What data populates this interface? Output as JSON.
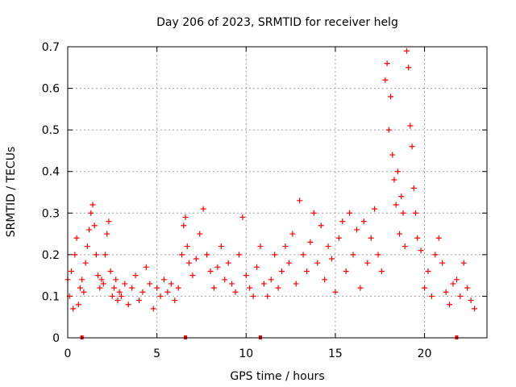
{
  "chart_data": {
    "type": "scatter",
    "title": "Day 206 of 2023, SRMTID for receiver helg",
    "xlabel": "GPS time / hours",
    "ylabel": "SRMTID / TECUs",
    "xlim": [
      0,
      23.5
    ],
    "ylim": [
      0,
      0.7
    ],
    "xticks": [
      0,
      5,
      10,
      15,
      20
    ],
    "xtick_labels": [
      "0",
      "5",
      "10",
      "15",
      "20"
    ],
    "yticks": [
      0,
      0.1,
      0.2,
      0.3,
      0.4,
      0.5,
      0.6,
      0.7
    ],
    "ytick_labels": [
      "0",
      "0.1",
      "0.2",
      "0.3",
      "0.4",
      "0.5",
      "0.6",
      "0.7"
    ],
    "grid": true,
    "marker": "+",
    "color": "#ff0000",
    "series": [
      {
        "name": "SRMTID",
        "x": [
          0.0,
          0.1,
          0.2,
          0.3,
          0.4,
          0.5,
          0.6,
          0.7,
          0.8,
          0.9,
          1.0,
          1.1,
          1.2,
          1.3,
          1.4,
          1.5,
          1.6,
          1.7,
          1.8,
          1.9,
          2.0,
          2.1,
          2.2,
          2.3,
          2.4,
          2.5,
          2.6,
          2.7,
          2.8,
          2.9,
          3.0,
          3.2,
          3.4,
          3.6,
          3.8,
          4.0,
          4.2,
          4.4,
          4.6,
          4.8,
          5.0,
          5.2,
          5.4,
          5.6,
          5.8,
          6.0,
          6.2,
          6.4,
          6.5,
          6.6,
          6.7,
          6.8,
          7.0,
          7.2,
          7.4,
          7.6,
          7.8,
          8.0,
          8.2,
          8.4,
          8.6,
          8.8,
          9.0,
          9.2,
          9.4,
          9.6,
          9.8,
          10.0,
          10.2,
          10.4,
          10.6,
          10.8,
          11.0,
          11.2,
          11.4,
          11.6,
          11.8,
          12.0,
          12.2,
          12.4,
          12.6,
          12.8,
          13.0,
          13.2,
          13.4,
          13.6,
          13.8,
          14.0,
          14.2,
          14.4,
          14.6,
          14.8,
          15.0,
          15.2,
          15.4,
          15.6,
          15.8,
          16.0,
          16.2,
          16.4,
          16.6,
          16.8,
          17.0,
          17.2,
          17.4,
          17.6,
          17.8,
          17.9,
          18.0,
          18.1,
          18.2,
          18.3,
          18.4,
          18.5,
          18.6,
          18.7,
          18.8,
          18.9,
          19.0,
          19.1,
          19.2,
          19.3,
          19.4,
          19.5,
          19.6,
          19.8,
          20.0,
          20.2,
          20.4,
          20.6,
          20.8,
          21.0,
          21.2,
          21.4,
          21.6,
          21.8,
          22.0,
          22.2,
          22.4,
          22.6,
          22.8
        ],
        "y": [
          0.14,
          0.1,
          0.16,
          0.07,
          0.2,
          0.24,
          0.08,
          0.12,
          0.14,
          0.11,
          0.18,
          0.22,
          0.26,
          0.3,
          0.32,
          0.27,
          0.2,
          0.15,
          0.12,
          0.14,
          0.13,
          0.2,
          0.25,
          0.28,
          0.16,
          0.1,
          0.12,
          0.14,
          0.09,
          0.11,
          0.1,
          0.13,
          0.08,
          0.12,
          0.15,
          0.09,
          0.11,
          0.17,
          0.13,
          0.07,
          0.12,
          0.1,
          0.14,
          0.11,
          0.13,
          0.09,
          0.12,
          0.2,
          0.27,
          0.29,
          0.22,
          0.18,
          0.15,
          0.19,
          0.25,
          0.31,
          0.2,
          0.16,
          0.12,
          0.17,
          0.22,
          0.14,
          0.18,
          0.13,
          0.11,
          0.2,
          0.29,
          0.15,
          0.12,
          0.1,
          0.17,
          0.22,
          0.13,
          0.1,
          0.14,
          0.2,
          0.12,
          0.16,
          0.22,
          0.18,
          0.25,
          0.13,
          0.33,
          0.2,
          0.16,
          0.23,
          0.3,
          0.18,
          0.27,
          0.14,
          0.22,
          0.19,
          0.11,
          0.24,
          0.28,
          0.16,
          0.3,
          0.2,
          0.26,
          0.12,
          0.28,
          0.18,
          0.24,
          0.31,
          0.2,
          0.16,
          0.62,
          0.66,
          0.5,
          0.58,
          0.44,
          0.38,
          0.32,
          0.4,
          0.25,
          0.34,
          0.3,
          0.22,
          0.69,
          0.65,
          0.51,
          0.46,
          0.36,
          0.3,
          0.24,
          0.21,
          0.12,
          0.16,
          0.1,
          0.2,
          0.24,
          0.18,
          0.11,
          0.08,
          0.13,
          0.14,
          0.1,
          0.18,
          0.12,
          0.09,
          0.07
        ]
      }
    ],
    "bottom_markers_x": [
      0.8,
      6.6,
      10.8,
      21.8
    ]
  }
}
